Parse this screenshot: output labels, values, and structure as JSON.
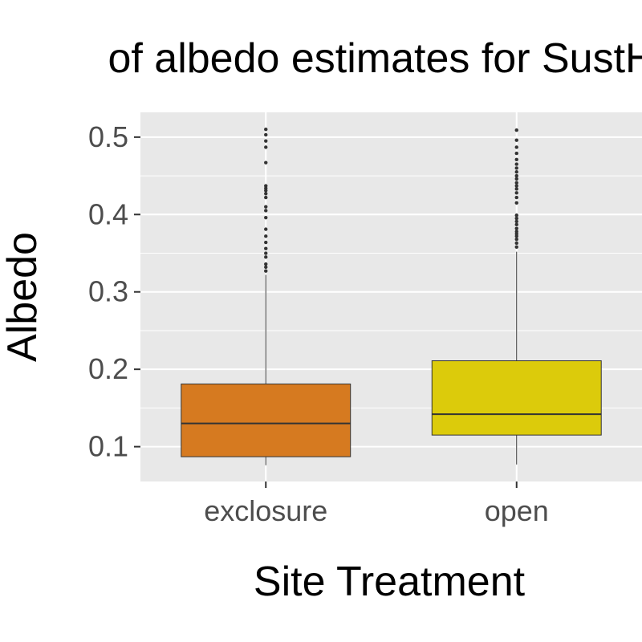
{
  "chart_data": {
    "type": "boxplot",
    "title": "of albedo estimates for SustHe",
    "xlabel": "Site Treatment",
    "ylabel": "Albedo",
    "categories": [
      "exclosure",
      "open"
    ],
    "ylim": [
      0.055,
      0.532
    ],
    "yticks": [
      0.1,
      0.2,
      0.3,
      0.4,
      0.5
    ],
    "ytick_labels": [
      "0.1",
      "0.2",
      "0.3",
      "0.4",
      "0.5"
    ],
    "grid": true,
    "legend": "none",
    "panel_background": "#e8e8e8",
    "grid_color": "#ffffff",
    "boxes": [
      {
        "category": "exclosure",
        "color": "#d67a20",
        "min": 0.076,
        "q1": 0.087,
        "median": 0.13,
        "q3": 0.181,
        "max": 0.322,
        "outliers": [
          0.327,
          0.332,
          0.336,
          0.345,
          0.35,
          0.356,
          0.364,
          0.372,
          0.381,
          0.396,
          0.405,
          0.41,
          0.422,
          0.427,
          0.431,
          0.434,
          0.437,
          0.467,
          0.487,
          0.495,
          0.503,
          0.51
        ]
      },
      {
        "category": "open",
        "color": "#dccb0b",
        "min": 0.077,
        "q1": 0.115,
        "median": 0.142,
        "q3": 0.211,
        "max": 0.352,
        "outliers": [
          0.358,
          0.363,
          0.368,
          0.372,
          0.375,
          0.378,
          0.382,
          0.387,
          0.391,
          0.395,
          0.399,
          0.415,
          0.422,
          0.428,
          0.433,
          0.437,
          0.441,
          0.446,
          0.45,
          0.455,
          0.46,
          0.465,
          0.471,
          0.479,
          0.487,
          0.496,
          0.509
        ]
      }
    ]
  }
}
